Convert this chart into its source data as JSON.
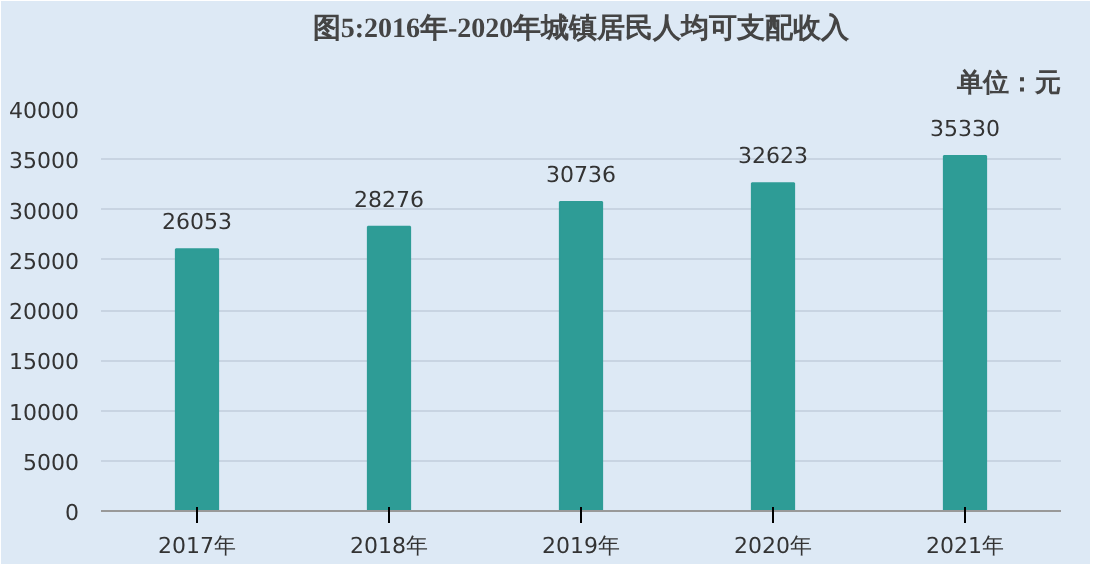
{
  "chart_data": {
    "type": "bar",
    "title": "图5:2016年-2020年城镇居民人均可支配收入",
    "subtitle": "单位：元",
    "categories": [
      "2017年",
      "2018年",
      "2019年",
      "2020年",
      "2021年"
    ],
    "values": [
      26053,
      28276,
      30736,
      32623,
      35330
    ],
    "color": "#2e9c96",
    "ylim": [
      0,
      40000
    ],
    "yticks": [
      0,
      5000,
      10000,
      15000,
      20000,
      25000,
      30000,
      35000,
      40000
    ],
    "grid": "y",
    "data_labels": true
  }
}
